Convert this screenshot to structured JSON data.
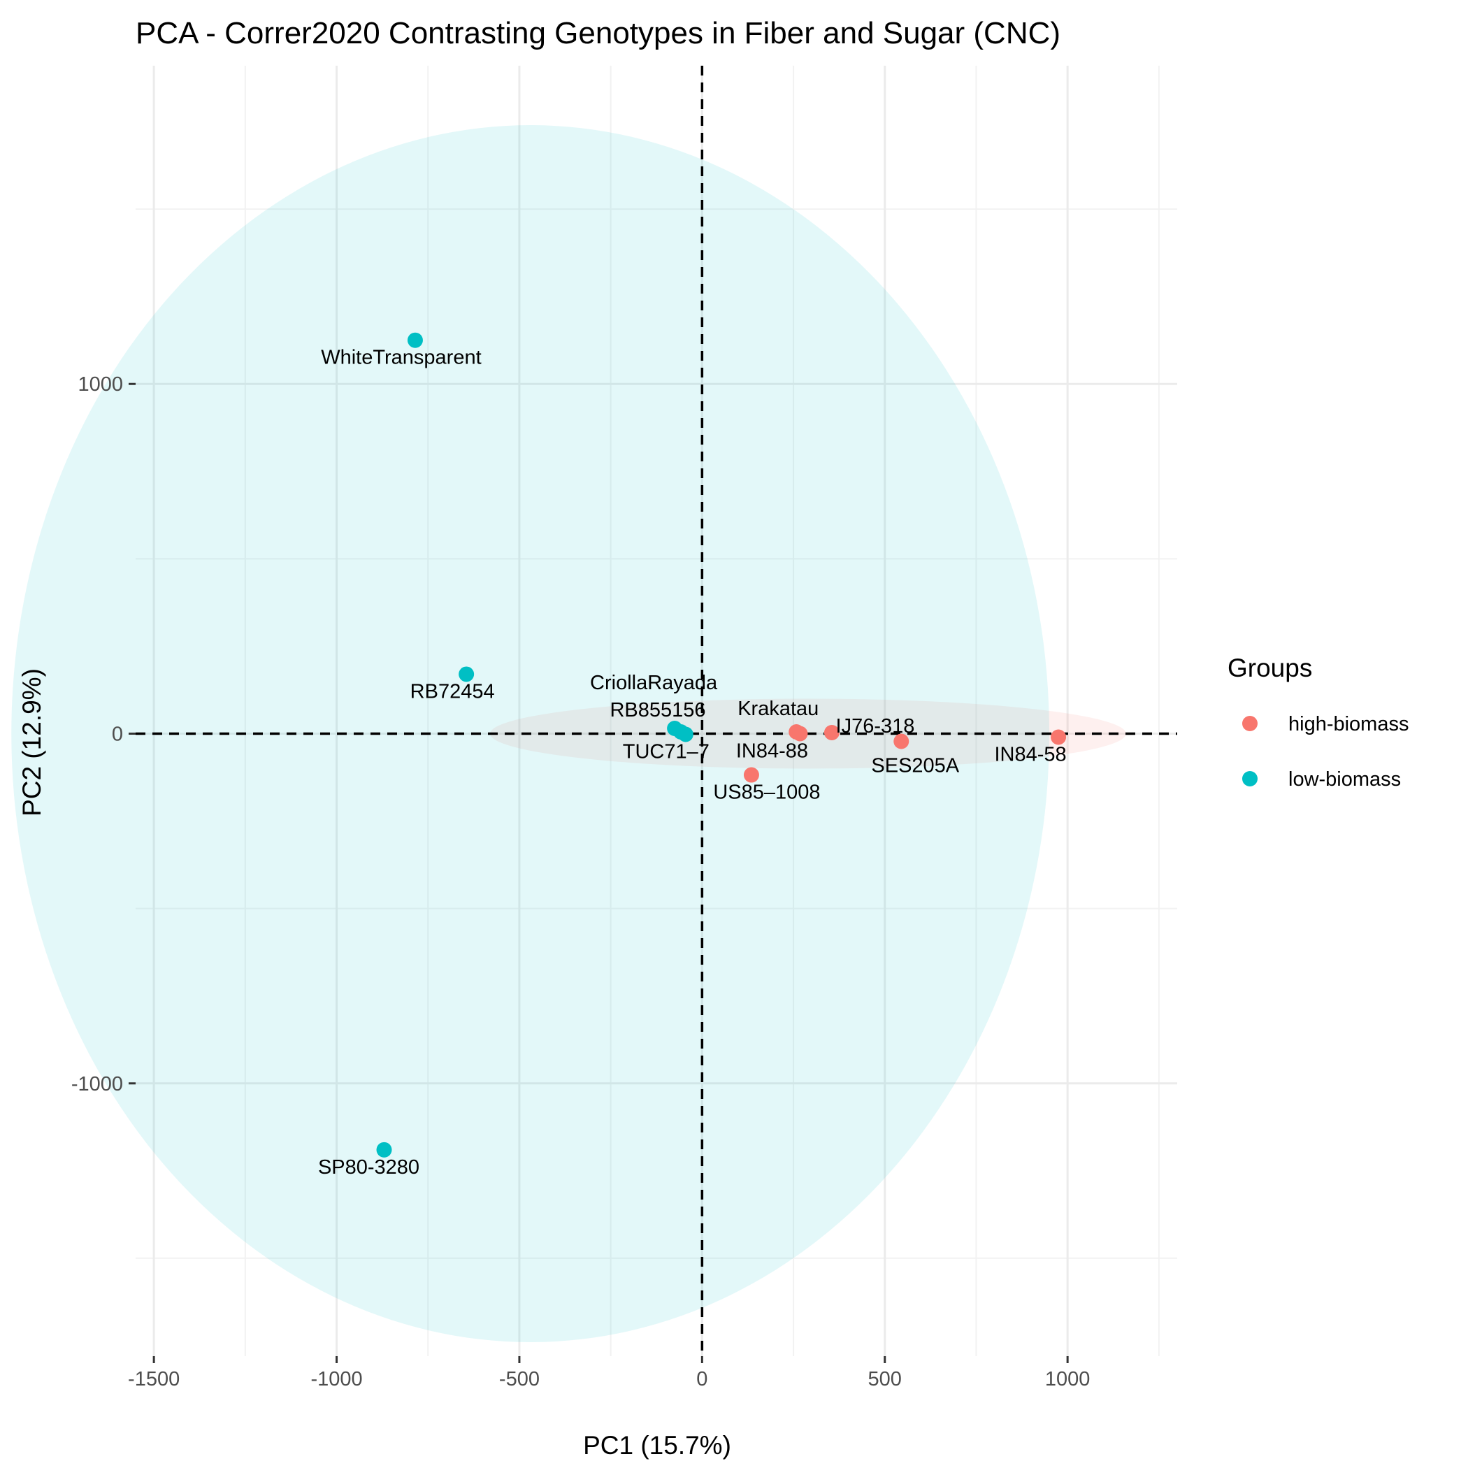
{
  "chart_data": {
    "type": "scatter",
    "title": "PCA - Correr2020 Contrasting Genotypes in Fiber and Sugar (CNC)",
    "xlabel": "PC1 (15.7%)",
    "ylabel": "PC2 (12.9%)",
    "xlim": [
      -1550,
      1300
    ],
    "ylim": [
      -1780,
      1910
    ],
    "x_ticks": [
      -1500,
      -1000,
      -500,
      0,
      500,
      1000
    ],
    "y_ticks": [
      -1000,
      0,
      1000
    ],
    "x_tick_labels": [
      "-1500",
      "-1000",
      "-500",
      "0",
      "500",
      "1000"
    ],
    "y_tick_labels": [
      "-1000",
      "0",
      "1000"
    ],
    "x_minor_grid": [
      -1250,
      -750,
      -250,
      250,
      750,
      1250
    ],
    "y_minor_grid": [
      -1500,
      -500,
      500,
      1500
    ],
    "grid": true,
    "reference_lines": {
      "x": 0,
      "y": 0,
      "style": "dashed"
    },
    "legend": {
      "title": "Groups",
      "position": "right",
      "entries": [
        {
          "label": "high-biomass",
          "color": "#F8766D"
        },
        {
          "label": "low-biomass",
          "color": "#00BFC4"
        }
      ]
    },
    "series": [
      {
        "name": "high-biomass",
        "color": "#F8766D",
        "ellipse": {
          "cx": 290,
          "cy": 0,
          "rx": 870,
          "ry": 100
        },
        "points": [
          {
            "label": "Krakatau",
            "x": 258,
            "y": 5
          },
          {
            "label": "IJ76-318",
            "x": 355,
            "y": 3
          },
          {
            "label": "IN84-88",
            "x": 268,
            "y": 0
          },
          {
            "label": "SES205A",
            "x": 545,
            "y": -22
          },
          {
            "label": "IN84-58",
            "x": 975,
            "y": -10
          },
          {
            "label": "US85–1008",
            "x": 135,
            "y": -118
          }
        ]
      },
      {
        "name": "low-biomass",
        "color": "#00BFC4",
        "ellipse": {
          "cx": -470,
          "cy": 0,
          "rx": 1420,
          "ry": 1740
        },
        "points": [
          {
            "label": "WhiteTransparent",
            "x": -785,
            "y": 1125
          },
          {
            "label": "RB72454",
            "x": -645,
            "y": 170
          },
          {
            "label": "CriollaRayada",
            "x": -75,
            "y": 15
          },
          {
            "label": "RB855156",
            "x": -58,
            "y": 5
          },
          {
            "label": "TUC71–7",
            "x": -45,
            "y": -2
          },
          {
            "label": "SP80-3280",
            "x": -870,
            "y": -1190
          }
        ]
      }
    ]
  }
}
